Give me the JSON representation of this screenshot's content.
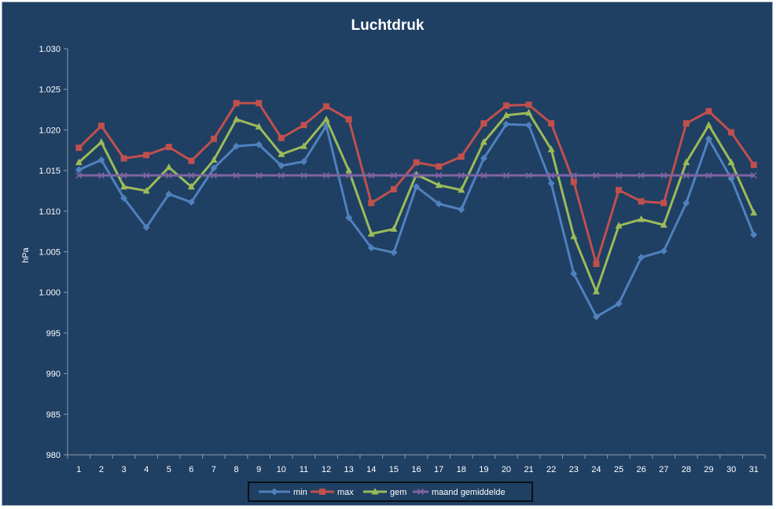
{
  "chart_data": {
    "type": "line",
    "title": "Luchtdruk",
    "xlabel": "",
    "ylabel": "hPa",
    "ylim": [
      980,
      1030
    ],
    "yticks": [
      "980",
      "985",
      "990",
      "995",
      "1.000",
      "1.005",
      "1.010",
      "1.015",
      "1.020",
      "1.025",
      "1.030"
    ],
    "categories": [
      "1",
      "2",
      "3",
      "4",
      "5",
      "6",
      "7",
      "8",
      "9",
      "10",
      "11",
      "12",
      "13",
      "14",
      "15",
      "16",
      "17",
      "18",
      "19",
      "20",
      "21",
      "22",
      "23",
      "24",
      "25",
      "26",
      "27",
      "28",
      "29",
      "30",
      "31"
    ],
    "grid": false,
    "legend_position": "bottom",
    "series": [
      {
        "name": "min",
        "color": "#4f81bd",
        "marker": "diamond",
        "values": [
          1015.1,
          1016.3,
          1011.6,
          1008.0,
          1012.1,
          1011.1,
          1015.3,
          1018.0,
          1018.2,
          1015.6,
          1016.1,
          1020.5,
          1009.2,
          1005.5,
          1004.9,
          1013.0,
          1010.9,
          1010.2,
          1016.5,
          1020.7,
          1020.6,
          1013.4,
          1002.3,
          997.0,
          998.6,
          1004.3,
          1005.1,
          1011.0,
          1018.9,
          1014.0,
          1007.1
        ]
      },
      {
        "name": "max",
        "color": "#c0504d",
        "marker": "square",
        "values": [
          1017.8,
          1020.5,
          1016.5,
          1016.9,
          1017.9,
          1016.2,
          1018.9,
          1023.3,
          1023.3,
          1019.0,
          1020.6,
          1022.9,
          1021.3,
          1011.0,
          1012.7,
          1016.0,
          1015.5,
          1016.7,
          1020.8,
          1023.0,
          1023.1,
          1020.8,
          1013.6,
          1003.5,
          1012.6,
          1011.2,
          1011.0,
          1020.8,
          1022.3,
          1019.7,
          1015.7
        ]
      },
      {
        "name": "gem",
        "color": "#9bbb59",
        "marker": "triangle",
        "values": [
          1016.0,
          1018.5,
          1013.0,
          1012.5,
          1015.4,
          1013.0,
          1016.3,
          1021.3,
          1020.4,
          1017.0,
          1018.0,
          1021.3,
          1015.0,
          1007.2,
          1007.8,
          1014.5,
          1013.2,
          1012.6,
          1018.5,
          1021.8,
          1022.1,
          1017.6,
          1006.9,
          1000.1,
          1008.2,
          1009.0,
          1008.3,
          1016.0,
          1020.6,
          1016.0,
          1009.8
        ]
      },
      {
        "name": "maand gemiddelde",
        "color": "#8064a2",
        "marker": "x",
        "values": [
          1014.4,
          1014.4,
          1014.4,
          1014.4,
          1014.4,
          1014.4,
          1014.4,
          1014.4,
          1014.4,
          1014.4,
          1014.4,
          1014.4,
          1014.4,
          1014.4,
          1014.4,
          1014.4,
          1014.4,
          1014.4,
          1014.4,
          1014.4,
          1014.4,
          1014.4,
          1014.4,
          1014.4,
          1014.4,
          1014.4,
          1014.4,
          1014.4,
          1014.4,
          1014.4,
          1014.4
        ]
      }
    ]
  }
}
